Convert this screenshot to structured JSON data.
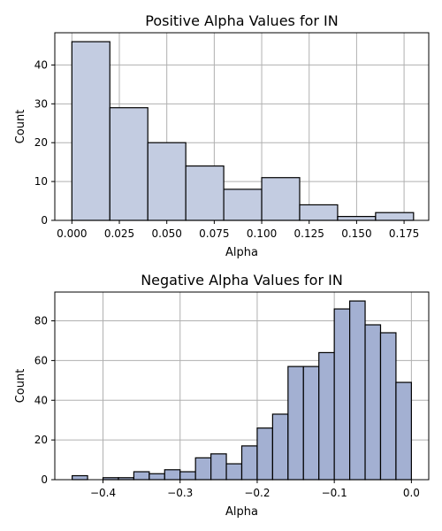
{
  "colors": {
    "positive_fill": "#c3cce1",
    "negative_fill": "#a3b0d2",
    "edge": "#000000",
    "grid": "#b0b0b0"
  },
  "chart_data": [
    {
      "type": "bar",
      "title": "Positive Alpha Values for IN",
      "xlabel": "Alpha",
      "ylabel": "Count",
      "grid": true,
      "xlim": [
        -0.009,
        0.188
      ],
      "ylim": [
        0,
        48.3
      ],
      "xticks": [
        0.0,
        0.025,
        0.05,
        0.075,
        0.1,
        0.125,
        0.15,
        0.175
      ],
      "xtick_labels": [
        "0.000",
        "0.025",
        "0.050",
        "0.075",
        "0.100",
        "0.125",
        "0.150",
        "0.175"
      ],
      "yticks": [
        0,
        10,
        20,
        30,
        40
      ],
      "ytick_labels": [
        "0",
        "10",
        "20",
        "30",
        "40"
      ],
      "bin_edges": [
        0.0,
        0.02,
        0.04,
        0.06,
        0.08,
        0.1,
        0.12,
        0.14,
        0.16,
        0.18
      ],
      "values": [
        46,
        29,
        20,
        14,
        8,
        11,
        4,
        1,
        2
      ]
    },
    {
      "type": "bar",
      "title": "Negative Alpha Values for IN",
      "xlabel": "Alpha",
      "ylabel": "Count",
      "grid": true,
      "xlim": [
        -0.4625,
        0.0225
      ],
      "ylim": [
        0,
        94.5
      ],
      "xticks": [
        -0.4,
        -0.3,
        -0.2,
        -0.1,
        0.0
      ],
      "xtick_labels": [
        "−0.4",
        "−0.3",
        "−0.2",
        "−0.1",
        "0.0"
      ],
      "yticks": [
        0,
        20,
        40,
        60,
        80
      ],
      "ytick_labels": [
        "0",
        "20",
        "40",
        "60",
        "80"
      ],
      "bin_edges": [
        -0.44,
        -0.42,
        -0.4,
        -0.38,
        -0.36,
        -0.34,
        -0.32,
        -0.3,
        -0.28,
        -0.26,
        -0.24,
        -0.22,
        -0.2,
        -0.18,
        -0.16,
        -0.14,
        -0.12,
        -0.1,
        -0.08,
        -0.06,
        -0.04,
        -0.02,
        0.0
      ],
      "values": [
        2,
        0,
        1,
        1,
        4,
        3,
        5,
        4,
        11,
        13,
        8,
        17,
        26,
        33,
        57,
        57,
        64,
        86,
        90,
        78,
        74,
        49
      ]
    }
  ]
}
